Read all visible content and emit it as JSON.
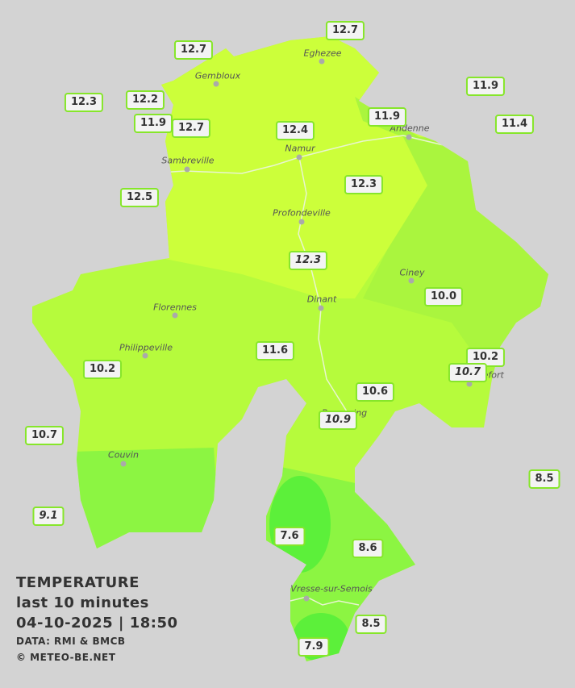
{
  "info": {
    "title": "TEMPERATURE",
    "period": "last 10 minutes",
    "timestamp": "04-10-2025  |  18:50",
    "source": "DATA: RMI & BMCB",
    "copyright": "© METEO-BE.NET"
  },
  "cities": [
    "Eghezee",
    "Gembloux",
    "Andenne",
    "Namur",
    "Sambreville",
    "Profondeville",
    "Ciney",
    "Dinant",
    "Florennes",
    "Philippeville",
    "Rochefort",
    "Beauraing",
    "Couvin",
    "Vresse-sur-Semois"
  ],
  "stations": [
    "12.7",
    "12.7",
    "12.3",
    "12.2",
    "11.9",
    "12.7",
    "12.4",
    "11.9",
    "11.9",
    "11.4",
    "12.5",
    "12.3",
    "12.3",
    "10.0",
    "11.6",
    "10.2",
    "10.2",
    "10.7",
    "10.6",
    "10.9",
    "10.7",
    "8.5",
    "9.1",
    "7.6",
    "8.6",
    "8.5",
    "7.9"
  ]
}
